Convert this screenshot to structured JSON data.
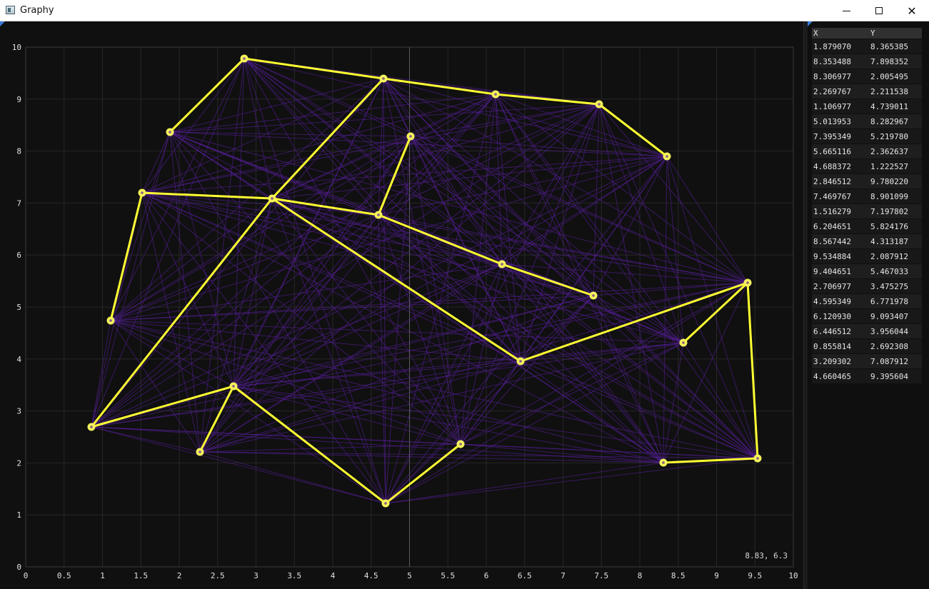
{
  "window": {
    "title": "Graphy",
    "icon": "app-window-icon",
    "controls": {
      "minimize": "minimize-icon",
      "maximize": "maximize-icon",
      "close": "close-icon",
      "close_glyph": "✕"
    }
  },
  "plot": {
    "coordinate_readout": "8.83, 6.3",
    "colors": {
      "background": "#101010",
      "grid": "#262626",
      "axis": "#3a3a3a",
      "crosshair": "#5a5a5a",
      "faint_edges": "#5a1fa0",
      "path": "#ffff33",
      "node_fill": "#f3f35a",
      "node_core": "#8a5a8a",
      "tick_text": "#e0e0e0"
    },
    "crosshair_x": 5
  },
  "chart_data": {
    "type": "scatter",
    "xlim": [
      0,
      10
    ],
    "ylim": [
      0,
      10
    ],
    "x_ticks": [
      "0",
      "0.5",
      "1",
      "1.5",
      "2",
      "2.5",
      "3",
      "3.5",
      "4",
      "4.5",
      "5",
      "5.5",
      "6",
      "6.5",
      "7",
      "7.5",
      "8",
      "8.5",
      "9",
      "9.5",
      "10"
    ],
    "y_ticks": [
      "0",
      "1",
      "2",
      "3",
      "4",
      "5",
      "6",
      "7",
      "8",
      "9",
      "10"
    ],
    "grid": true,
    "points": [
      {
        "x": 1.87907,
        "y": 8.365385
      },
      {
        "x": 8.353488,
        "y": 7.898352
      },
      {
        "x": 8.306977,
        "y": 2.005495
      },
      {
        "x": 2.269767,
        "y": 2.211538
      },
      {
        "x": 1.106977,
        "y": 4.739011
      },
      {
        "x": 5.013953,
        "y": 8.282967
      },
      {
        "x": 7.395349,
        "y": 5.21978
      },
      {
        "x": 5.665116,
        "y": 2.362637
      },
      {
        "x": 4.688372,
        "y": 1.222527
      },
      {
        "x": 2.846512,
        "y": 9.78022
      },
      {
        "x": 7.469767,
        "y": 8.901099
      },
      {
        "x": 1.516279,
        "y": 7.197802
      },
      {
        "x": 6.204651,
        "y": 5.824176
      },
      {
        "x": 8.567442,
        "y": 4.313187
      },
      {
        "x": 9.534884,
        "y": 2.087912
      },
      {
        "x": 9.404651,
        "y": 5.467033
      },
      {
        "x": 2.706977,
        "y": 3.475275
      },
      {
        "x": 4.595349,
        "y": 6.771978
      },
      {
        "x": 6.12093,
        "y": 9.093407
      },
      {
        "x": 6.446512,
        "y": 3.956044
      },
      {
        "x": 0.855814,
        "y": 2.692308
      },
      {
        "x": 3.209302,
        "y": 7.087912
      },
      {
        "x": 4.660465,
        "y": 9.395604
      }
    ],
    "highlighted_edges": [
      [
        0,
        9
      ],
      [
        9,
        22
      ],
      [
        22,
        18
      ],
      [
        18,
        10
      ],
      [
        10,
        1
      ],
      [
        22,
        21
      ],
      [
        21,
        20
      ],
      [
        20,
        16
      ],
      [
        16,
        3
      ],
      [
        16,
        8
      ],
      [
        8,
        7
      ],
      [
        21,
        11
      ],
      [
        11,
        4
      ],
      [
        21,
        17
      ],
      [
        17,
        5
      ],
      [
        17,
        12
      ],
      [
        12,
        6
      ],
      [
        21,
        19
      ],
      [
        19,
        15
      ],
      [
        15,
        13
      ],
      [
        15,
        14
      ],
      [
        14,
        2
      ]
    ]
  },
  "table": {
    "headers": [
      "X",
      "Y"
    ],
    "rows": [
      [
        "1.879070",
        "8.365385"
      ],
      [
        "8.353488",
        "7.898352"
      ],
      [
        "8.306977",
        "2.005495"
      ],
      [
        "2.269767",
        "2.211538"
      ],
      [
        "1.106977",
        "4.739011"
      ],
      [
        "5.013953",
        "8.282967"
      ],
      [
        "7.395349",
        "5.219780"
      ],
      [
        "5.665116",
        "2.362637"
      ],
      [
        "4.688372",
        "1.222527"
      ],
      [
        "2.846512",
        "9.780220"
      ],
      [
        "7.469767",
        "8.901099"
      ],
      [
        "1.516279",
        "7.197802"
      ],
      [
        "6.204651",
        "5.824176"
      ],
      [
        "8.567442",
        "4.313187"
      ],
      [
        "9.534884",
        "2.087912"
      ],
      [
        "9.404651",
        "5.467033"
      ],
      [
        "2.706977",
        "3.475275"
      ],
      [
        "4.595349",
        "6.771978"
      ],
      [
        "6.120930",
        "9.093407"
      ],
      [
        "6.446512",
        "3.956044"
      ],
      [
        "0.855814",
        "2.692308"
      ],
      [
        "3.209302",
        "7.087912"
      ],
      [
        "4.660465",
        "9.395604"
      ]
    ]
  }
}
